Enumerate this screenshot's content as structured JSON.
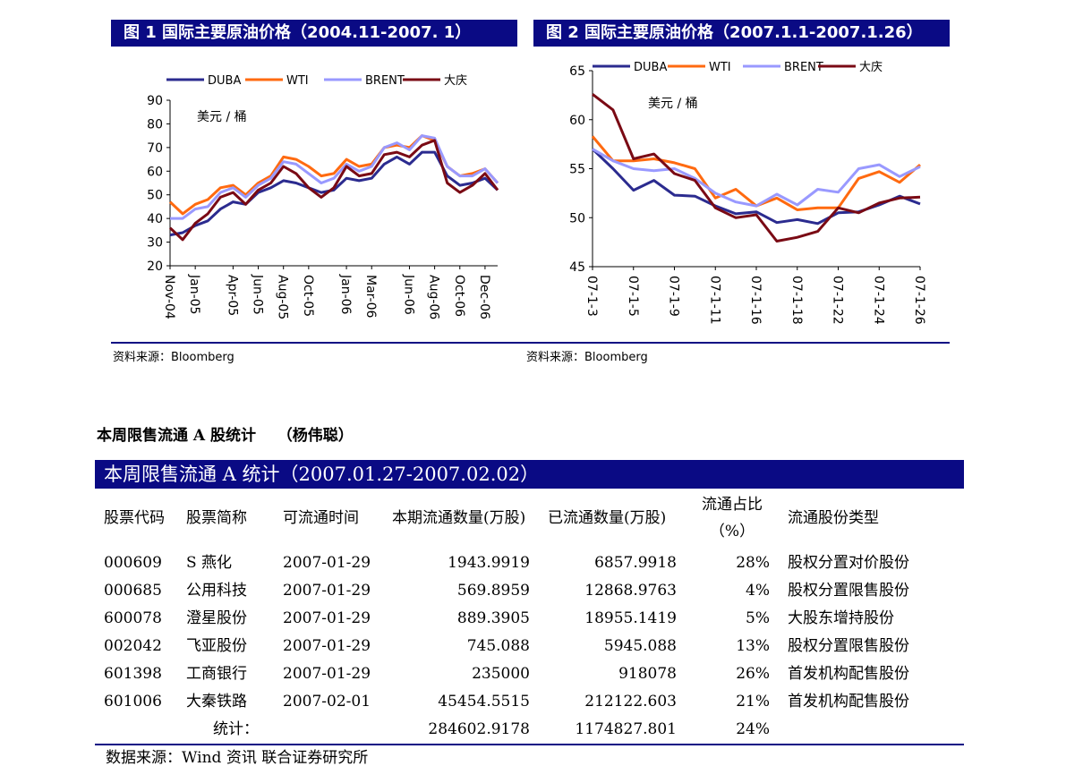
{
  "figures": [
    {
      "title": "图 1  国际主要原油价格（2004.11-2007. 1）",
      "source": "资料来源：Bloomberg",
      "unit_label": "美元 / 桶"
    },
    {
      "title": "图 2  国际主要原油价格（2007.1.1-2007.1.26）",
      "source": "资料来源：Bloomberg",
      "unit_label": "美元 / 桶"
    }
  ],
  "chart_data": [
    {
      "type": "line",
      "title": "图 1  国际主要原油价格（2004.11-2007. 1）",
      "ylabel": "美元 / 桶",
      "ylim": [
        20,
        90
      ],
      "yticks": [
        20,
        30,
        40,
        50,
        60,
        70,
        80,
        90
      ],
      "xticks": [
        "Nov-04",
        "Jan-05",
        "Apr-05",
        "Jun-05",
        "Aug-05",
        "Oct-05",
        "Jan-06",
        "Mar-06",
        "Jun-06",
        "Aug-06",
        "Oct-06",
        "Dec-06"
      ],
      "x": [
        "Nov-04",
        "Dec-04",
        "Jan-05",
        "Feb-05",
        "Mar-05",
        "Apr-05",
        "May-05",
        "Jun-05",
        "Jul-05",
        "Aug-05",
        "Sep-05",
        "Oct-05",
        "Nov-05",
        "Dec-05",
        "Jan-06",
        "Feb-06",
        "Mar-06",
        "Apr-06",
        "May-06",
        "Jun-06",
        "Jul-06",
        "Aug-06",
        "Sep-06",
        "Oct-06",
        "Nov-06",
        "Dec-06",
        "Jan-07"
      ],
      "legend_position": "top",
      "grid": false,
      "series": [
        {
          "name": "DUBA",
          "color": "#2b2b8f",
          "values": [
            33,
            34,
            37,
            39,
            44,
            47,
            46,
            51,
            53,
            56,
            55,
            53,
            51,
            52,
            57,
            56,
            57,
            63,
            66,
            63,
            68,
            68,
            58,
            54,
            55,
            57,
            52
          ]
        },
        {
          "name": "WTI",
          "color": "#ff6a10",
          "values": [
            47,
            42,
            46,
            48,
            53,
            54,
            50,
            55,
            58,
            66,
            65,
            62,
            58,
            59,
            65,
            62,
            63,
            70,
            71,
            70,
            75,
            73,
            62,
            58,
            59,
            61,
            55
          ]
        },
        {
          "name": "BRENT",
          "color": "#9999ff",
          "values": [
            40,
            40,
            44,
            45,
            51,
            53,
            49,
            54,
            57,
            64,
            63,
            59,
            55,
            57,
            63,
            60,
            62,
            70,
            72,
            69,
            75,
            74,
            62,
            58,
            58,
            61,
            55
          ]
        },
        {
          "name": "大庆",
          "color": "#7a0a14",
          "values": [
            36,
            31,
            38,
            42,
            49,
            51,
            46,
            52,
            55,
            62,
            59,
            53,
            49,
            53,
            62,
            58,
            59,
            67,
            68,
            66,
            71,
            73,
            55,
            51,
            54,
            59,
            52
          ]
        }
      ]
    },
    {
      "type": "line",
      "title": "图 2  国际主要原油价格（2007.1.1-2007.1.26）",
      "ylabel": "美元 / 桶",
      "ylim": [
        45,
        65
      ],
      "yticks": [
        45,
        50,
        55,
        60,
        65
      ],
      "xticks": [
        "07-1-3",
        "07-1-5",
        "07-1-9",
        "07-1-11",
        "07-1-16",
        "07-1-18",
        "07-1-22",
        "07-1-24",
        "07-1-26"
      ],
      "x": [
        "07-1-3",
        "07-1-4",
        "07-1-5",
        "07-1-8",
        "07-1-9",
        "07-1-10",
        "07-1-11",
        "07-1-12",
        "07-1-16",
        "07-1-17",
        "07-1-18",
        "07-1-19",
        "07-1-22",
        "07-1-23",
        "07-1-24",
        "07-1-25",
        "07-1-26"
      ],
      "legend_position": "top",
      "grid": false,
      "series": [
        {
          "name": "DUBA",
          "color": "#2b2b8f",
          "values": [
            57.0,
            55.0,
            52.8,
            53.8,
            52.3,
            52.2,
            51.2,
            50.4,
            50.6,
            49.5,
            49.8,
            49.4,
            50.5,
            50.6,
            51.3,
            52.2,
            51.4
          ]
        },
        {
          "name": "WTI",
          "color": "#ff6a10",
          "values": [
            58.3,
            55.8,
            55.8,
            56.0,
            55.6,
            55.0,
            52.0,
            52.9,
            51.2,
            52.0,
            50.8,
            51.0,
            51.0,
            54.0,
            54.7,
            53.6,
            55.4
          ]
        },
        {
          "name": "BRENT",
          "color": "#9999ff",
          "values": [
            57.0,
            55.8,
            55.0,
            54.8,
            55.0,
            54.0,
            52.5,
            51.6,
            51.2,
            52.4,
            51.3,
            52.9,
            52.6,
            55.0,
            55.4,
            54.2,
            55.2
          ]
        },
        {
          "name": "大庆",
          "color": "#7a0a14",
          "values": [
            62.6,
            61.0,
            56.0,
            56.5,
            54.5,
            53.8,
            51.0,
            50.0,
            50.3,
            47.6,
            48.0,
            48.6,
            51.0,
            50.5,
            51.5,
            52.0,
            52.1
          ]
        }
      ]
    }
  ],
  "section_heading": "本周限售流通 A 股统计    （杨伟聪）",
  "table": {
    "title": "本周限售流通 A 统计（2007.01.27-2007.02.02）",
    "headers": [
      "股票代码",
      "股票简称",
      "可流通时间",
      "本期流通数量(万股)",
      "已流通数量(万股)",
      "流通占比（%）",
      "流通股份类型"
    ],
    "rows": [
      [
        "000609",
        "S 燕化",
        "2007-01-29",
        "1943.9919",
        "6857.9918",
        "28%",
        "股权分置对价股份"
      ],
      [
        "000685",
        "公用科技",
        "2007-01-29",
        "569.8959",
        "12868.9763",
        "4%",
        "股权分置限售股份"
      ],
      [
        "600078",
        "澄星股份",
        "2007-01-29",
        "889.3905",
        "18955.1419",
        "5%",
        "大股东增持股份"
      ],
      [
        "002042",
        "飞亚股份",
        "2007-01-29",
        "745.088",
        "5945.088",
        "13%",
        "股权分置限售股份"
      ],
      [
        "601398",
        "工商银行",
        "2007-01-29",
        "235000",
        "918078",
        "26%",
        "首发机构配售股份"
      ],
      [
        "601006",
        "大秦铁路",
        "2007-02-01",
        "45454.5515",
        "212122.603",
        "21%",
        "首发机构配售股份"
      ]
    ],
    "total": {
      "label": "统计：",
      "period": "284602.9178",
      "cumulative": "1174827.801",
      "ratio": "24%"
    },
    "source": "数据来源：Wind 资讯   联合证券研究所"
  }
}
